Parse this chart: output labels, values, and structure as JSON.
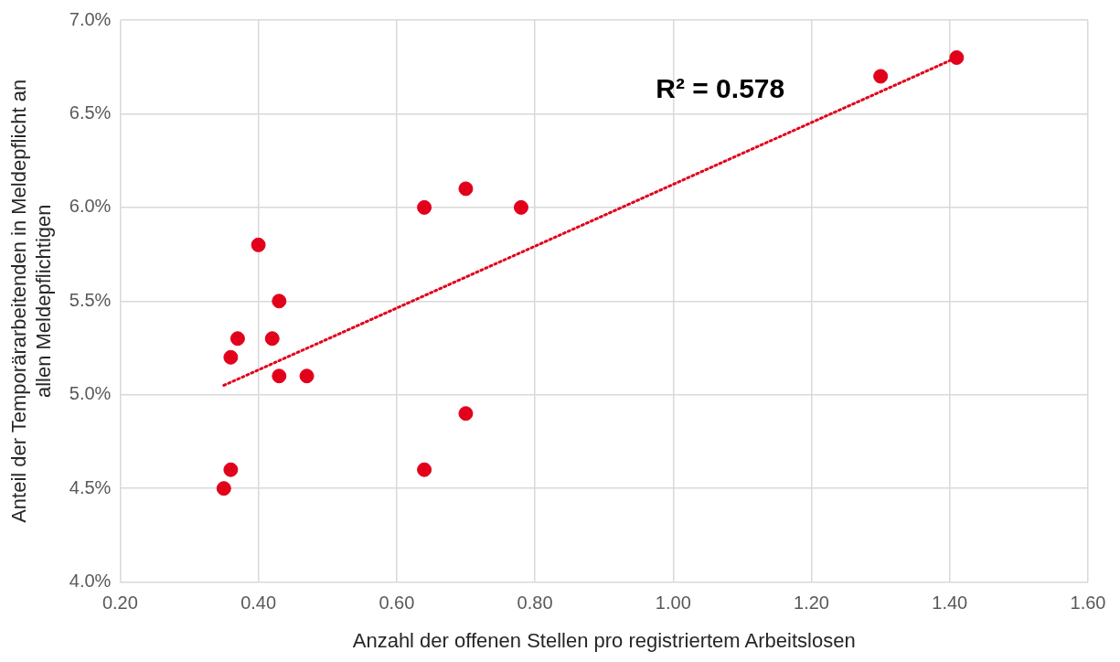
{
  "chart_data": {
    "type": "scatter",
    "xlabel": "Anzahl der offenen Stellen pro registriertem Arbeitslosen",
    "ylabel": "Anteil der Temporärarbeitenden in Meldepflicht an allen Meldepflichtigen",
    "x": [
      0.35,
      0.36,
      0.36,
      0.37,
      0.4,
      0.42,
      0.43,
      0.43,
      0.47,
      0.64,
      0.64,
      0.7,
      0.7,
      0.78,
      1.3,
      1.41
    ],
    "series": [
      {
        "color": "#e2001a",
        "marker": "circle",
        "values": [
          4.5,
          4.6,
          5.2,
          5.3,
          5.8,
          5.3,
          5.5,
          5.1,
          5.1,
          6.0,
          4.6,
          6.1,
          4.9,
          6.0,
          6.7,
          6.8
        ]
      },
      {
        "type": "line",
        "color": "#e2001a",
        "line_style": "dotted",
        "marker": "none",
        "x": [
          0.35,
          1.41
        ],
        "values": [
          5.05,
          6.8
        ]
      }
    ],
    "annotations": [
      "R² = 0.578"
    ],
    "xlim": [
      0.2,
      1.6
    ],
    "xticks": [
      {
        "value": 0.2,
        "label": "0.20"
      },
      {
        "value": 0.4,
        "label": "0.40"
      },
      {
        "value": 0.6,
        "label": "0.60"
      },
      {
        "value": 0.8,
        "label": "0.80"
      },
      {
        "value": 1.0,
        "label": "1.00"
      },
      {
        "value": 1.2,
        "label": "1.20"
      },
      {
        "value": 1.4,
        "label": "1.40"
      },
      {
        "value": 1.6,
        "label": "1.60"
      }
    ],
    "ylim": [
      4.0,
      7.0
    ],
    "yticks": [
      {
        "value": 4.0,
        "label": "4.0%"
      },
      {
        "value": 4.5,
        "label": "4.5%"
      },
      {
        "value": 5.0,
        "label": "5.0%"
      },
      {
        "value": 5.5,
        "label": "5.5%"
      },
      {
        "value": 6.0,
        "label": "6.0%"
      },
      {
        "value": 6.5,
        "label": "6.5%"
      },
      {
        "value": 7.0,
        "label": "7.0%"
      }
    ],
    "grid": true,
    "legend": false
  }
}
